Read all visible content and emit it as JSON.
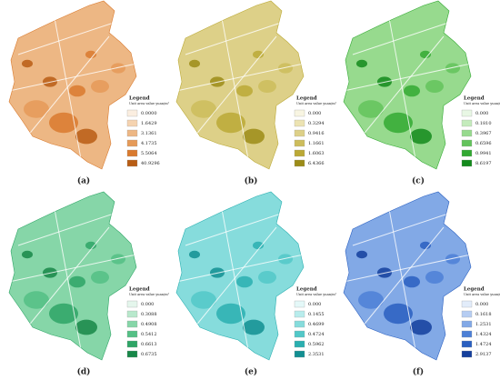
{
  "panels": [
    {
      "label": "(a)",
      "legend": {
        "title": "Legend",
        "unit": "Unit area value yuan/m²",
        "items": [
          {
            "label": "0.0000",
            "color": "#fbeee0"
          },
          {
            "label": "1.6429",
            "color": "#f5d3b0"
          },
          {
            "label": "3.1361",
            "color": "#edb784"
          },
          {
            "label": "4.1735",
            "color": "#e59a58"
          },
          {
            "label": "5.5064",
            "color": "#d97a2e"
          },
          {
            "label": "40.9296",
            "color": "#b85d14"
          }
        ]
      }
    },
    {
      "label": "(b)",
      "legend": {
        "title": "Legend",
        "unit": "Unit area value yuan/m²",
        "items": [
          {
            "label": "0.000",
            "color": "#f8f5e2"
          },
          {
            "label": "0.3294",
            "color": "#ece3b2"
          },
          {
            "label": "0.9416",
            "color": "#ddd088"
          },
          {
            "label": "1.1661",
            "color": "#cdbd5c"
          },
          {
            "label": "1.6063",
            "color": "#bba936"
          },
          {
            "label": "6.4366",
            "color": "#9c8c18"
          }
        ]
      }
    },
    {
      "label": "(c)",
      "legend": {
        "title": "Legend",
        "unit": "Unit area value yuan/m²",
        "items": [
          {
            "label": "0.000",
            "color": "#e8f7e4"
          },
          {
            "label": "0.1810",
            "color": "#c4ebbc"
          },
          {
            "label": "0.3967",
            "color": "#97da8e"
          },
          {
            "label": "0.6596",
            "color": "#63c35c"
          },
          {
            "label": "0.9941",
            "color": "#32a932"
          },
          {
            "label": "8.6197",
            "color": "#138a1c"
          }
        ]
      }
    },
    {
      "label": "(d)",
      "legend": {
        "title": "Legend",
        "unit": "Unit area value yuan/m²",
        "items": [
          {
            "label": "0.000",
            "color": "#e4f6ec"
          },
          {
            "label": "0.3088",
            "color": "#b8e8cc"
          },
          {
            "label": "0.4908",
            "color": "#86d6a8"
          },
          {
            "label": "0.5412",
            "color": "#54c085"
          },
          {
            "label": "0.6613",
            "color": "#2ea566"
          },
          {
            "label": "0.6735",
            "color": "#178748"
          }
        ]
      }
    },
    {
      "label": "(e)",
      "legend": {
        "title": "Legend",
        "unit": "Unit area value yuan/m²",
        "items": [
          {
            "label": "0.000",
            "color": "#e4f8f8"
          },
          {
            "label": "0.1455",
            "color": "#b8ecec"
          },
          {
            "label": "0.4699",
            "color": "#86dcdc"
          },
          {
            "label": "0.4724",
            "color": "#52c8c8"
          },
          {
            "label": "0.5962",
            "color": "#2aafb0"
          },
          {
            "label": "2.3531",
            "color": "#128f92"
          }
        ]
      }
    },
    {
      "label": "(f)",
      "legend": {
        "title": "Legend",
        "unit": "Unit area value yuan/m²",
        "items": [
          {
            "label": "0.000",
            "color": "#e2ecfa"
          },
          {
            "label": "0.1618",
            "color": "#b6cdf2"
          },
          {
            "label": "1.2531",
            "color": "#82a9e6"
          },
          {
            "label": "1.4324",
            "color": "#4d80d6"
          },
          {
            "label": "1.4724",
            "color": "#2a5fc0"
          },
          {
            "label": "2.9137",
            "color": "#143f9c"
          }
        ]
      }
    }
  ]
}
